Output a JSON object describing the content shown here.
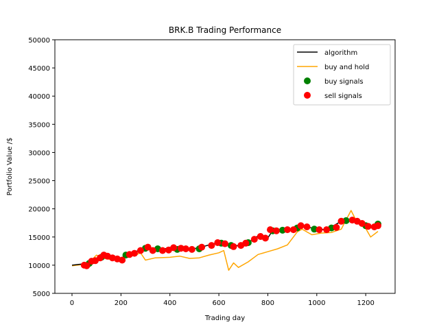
{
  "chart_data": {
    "type": "line",
    "title": "BRK.B Trading Performance",
    "xlabel": "Trading day",
    "ylabel": "Portfolio Value /$",
    "xlim": [
      -70,
      1320
    ],
    "ylim": [
      5000,
      50000
    ],
    "x_ticks": [
      0,
      200,
      400,
      600,
      800,
      1000,
      1200
    ],
    "y_ticks": [
      5000,
      10000,
      15000,
      20000,
      25000,
      30000,
      35000,
      40000,
      45000,
      50000
    ],
    "grid": false,
    "legend_position": "top-right",
    "series": [
      {
        "name": "algorithm",
        "kind": "line",
        "color": "#000000",
        "points": [
          [
            0,
            10000
          ],
          [
            40,
            10200
          ],
          [
            60,
            10000
          ],
          [
            80,
            10600
          ],
          [
            100,
            10900
          ],
          [
            120,
            11600
          ],
          [
            140,
            11800
          ],
          [
            160,
            11500
          ],
          [
            200,
            11100
          ],
          [
            220,
            11900
          ],
          [
            260,
            12400
          ],
          [
            300,
            13200
          ],
          [
            340,
            12800
          ],
          [
            400,
            13000
          ],
          [
            440,
            13000
          ],
          [
            480,
            12800
          ],
          [
            520,
            13100
          ],
          [
            560,
            13600
          ],
          [
            600,
            14000
          ],
          [
            640,
            13800
          ],
          [
            680,
            13400
          ],
          [
            720,
            14000
          ],
          [
            760,
            15200
          ],
          [
            800,
            14800
          ],
          [
            820,
            16200
          ],
          [
            860,
            16300
          ],
          [
            900,
            16500
          ],
          [
            940,
            17000
          ],
          [
            1000,
            16400
          ],
          [
            1040,
            16300
          ],
          [
            1100,
            17800
          ],
          [
            1140,
            18100
          ],
          [
            1180,
            17800
          ],
          [
            1220,
            16900
          ],
          [
            1260,
            17200
          ]
        ]
      },
      {
        "name": "buy and hold",
        "kind": "line",
        "color": "#ffa500",
        "points": [
          [
            0,
            9900
          ],
          [
            40,
            10100
          ],
          [
            80,
            10900
          ],
          [
            100,
            11800
          ],
          [
            120,
            11300
          ],
          [
            160,
            11000
          ],
          [
            200,
            11100
          ],
          [
            220,
            11500
          ],
          [
            260,
            11800
          ],
          [
            280,
            12200
          ],
          [
            300,
            10900
          ],
          [
            340,
            11300
          ],
          [
            400,
            11400
          ],
          [
            440,
            11600
          ],
          [
            480,
            11200
          ],
          [
            520,
            11300
          ],
          [
            560,
            11800
          ],
          [
            600,
            12200
          ],
          [
            620,
            12600
          ],
          [
            640,
            9100
          ],
          [
            660,
            10400
          ],
          [
            680,
            9600
          ],
          [
            720,
            10600
          ],
          [
            760,
            11900
          ],
          [
            800,
            12400
          ],
          [
            840,
            12900
          ],
          [
            880,
            13600
          ],
          [
            920,
            15900
          ],
          [
            940,
            16400
          ],
          [
            980,
            15400
          ],
          [
            1020,
            15700
          ],
          [
            1060,
            15800
          ],
          [
            1100,
            16400
          ],
          [
            1140,
            19700
          ],
          [
            1160,
            18000
          ],
          [
            1200,
            16500
          ],
          [
            1220,
            15000
          ],
          [
            1250,
            16000
          ]
        ]
      },
      {
        "name": "buy signals",
        "kind": "scatter",
        "color": "#008000",
        "points": [
          [
            70,
            10300
          ],
          [
            120,
            11400
          ],
          [
            220,
            11800
          ],
          [
            300,
            13000
          ],
          [
            350,
            12900
          ],
          [
            430,
            12800
          ],
          [
            520,
            12900
          ],
          [
            610,
            13900
          ],
          [
            650,
            13500
          ],
          [
            720,
            14000
          ],
          [
            820,
            16100
          ],
          [
            860,
            16200
          ],
          [
            920,
            16600
          ],
          [
            990,
            16400
          ],
          [
            1060,
            16600
          ],
          [
            1120,
            17900
          ],
          [
            1200,
            17000
          ],
          [
            1250,
            17300
          ]
        ]
      },
      {
        "name": "sell signals",
        "kind": "scatter",
        "color": "#ff0000",
        "points": [
          [
            50,
            10000
          ],
          [
            60,
            9900
          ],
          [
            80,
            10700
          ],
          [
            95,
            10800
          ],
          [
            115,
            11300
          ],
          [
            130,
            11800
          ],
          [
            145,
            11600
          ],
          [
            165,
            11300
          ],
          [
            185,
            11100
          ],
          [
            205,
            10900
          ],
          [
            235,
            11900
          ],
          [
            255,
            12100
          ],
          [
            280,
            12600
          ],
          [
            310,
            13200
          ],
          [
            330,
            12600
          ],
          [
            370,
            12600
          ],
          [
            395,
            12700
          ],
          [
            415,
            13100
          ],
          [
            445,
            13000
          ],
          [
            465,
            12900
          ],
          [
            490,
            12800
          ],
          [
            530,
            13200
          ],
          [
            570,
            13500
          ],
          [
            595,
            14000
          ],
          [
            625,
            13800
          ],
          [
            660,
            13300
          ],
          [
            690,
            13500
          ],
          [
            710,
            13900
          ],
          [
            745,
            14600
          ],
          [
            770,
            15100
          ],
          [
            790,
            14800
          ],
          [
            810,
            16300
          ],
          [
            835,
            16100
          ],
          [
            880,
            16300
          ],
          [
            905,
            16300
          ],
          [
            935,
            17000
          ],
          [
            960,
            16800
          ],
          [
            1010,
            16300
          ],
          [
            1040,
            16300
          ],
          [
            1080,
            16700
          ],
          [
            1100,
            17800
          ],
          [
            1145,
            18000
          ],
          [
            1165,
            17800
          ],
          [
            1185,
            17400
          ],
          [
            1210,
            16900
          ],
          [
            1235,
            16800
          ],
          [
            1250,
            17000
          ]
        ]
      }
    ]
  }
}
